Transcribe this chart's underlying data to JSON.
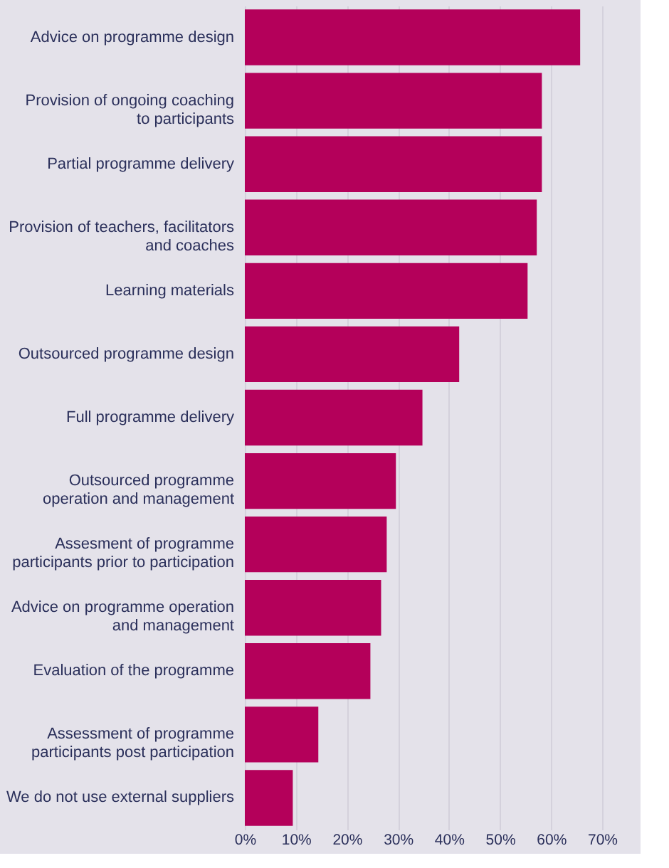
{
  "chart_data": {
    "type": "bar",
    "orientation": "horizontal",
    "categories": [
      "Advice on programme design",
      "Provision of ongoing coaching\nto participants",
      "Partial programme delivery",
      "Provision of teachers, facilitators\nand coaches",
      "Learning materials",
      "Outsourced programme design",
      "Full programme delivery",
      "Outsourced programme\noperation and management",
      "Assesment of programme\nparticipants prior to participation",
      "Advice on programme operation\nand management",
      "Evaluation of the programme",
      "Assessment of programme\nparticipants post participation",
      "We do not use external suppliers"
    ],
    "values": [
      65.7,
      58.2,
      58.2,
      57.2,
      55.4,
      42.0,
      34.8,
      29.6,
      27.8,
      26.7,
      24.6,
      14.4,
      9.4
    ],
    "color": "#b4005a",
    "xlim": [
      0,
      70
    ],
    "xticks": [
      {
        "value": 0,
        "label": "0%"
      },
      {
        "value": 10,
        "label": "10%"
      },
      {
        "value": 20,
        "label": "20%"
      },
      {
        "value": 30,
        "label": "30%"
      },
      {
        "value": 40,
        "label": "40%"
      },
      {
        "value": 50,
        "label": "50%"
      },
      {
        "value": 60,
        "label": "60%"
      },
      {
        "value": 70,
        "label": "70%"
      }
    ],
    "grid": "x"
  }
}
